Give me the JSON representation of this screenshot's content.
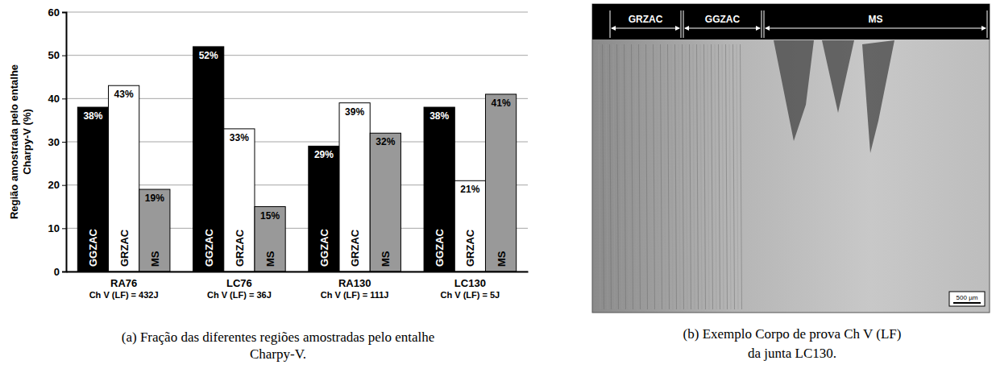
{
  "chart_data": {
    "type": "bar",
    "title": "(a) Fração das diferentes regiões amostradas pelo entalhe Charpy-V.",
    "y_label": "Região amostrada pelo entalhe Charpy-V (%)",
    "categories": [
      "RA76",
      "LC76",
      "RA130",
      "LC130"
    ],
    "category_notes": [
      "Ch V (LF) = 432J",
      "Ch V (LF) = 36J",
      "Ch V (LF) = 111J",
      "Ch V (LF) = 5J"
    ],
    "series": [
      {
        "name": "GGZAC",
        "color": "#000000",
        "values": [
          38,
          52,
          29,
          38
        ],
        "value_labels": [
          "38%",
          "52%",
          "29%",
          "38%"
        ]
      },
      {
        "name": "GRZAC",
        "color": "#ffffff",
        "values": [
          43,
          33,
          39,
          21
        ],
        "value_labels": [
          "43%",
          "33%",
          "39%",
          "21%"
        ]
      },
      {
        "name": "MS",
        "color": "#999999",
        "values": [
          19,
          15,
          32,
          41
        ],
        "value_labels": [
          "19%",
          "15%",
          "32%",
          "41%"
        ]
      }
    ],
    "ylim": [
      0,
      60
    ],
    "yticks": [
      0,
      10,
      20,
      30,
      40,
      50,
      60
    ],
    "grid": true,
    "data_labels": true
  },
  "panel_b": {
    "regions": [
      "GRZAC",
      "GGZAC",
      "MS"
    ],
    "scale_bar": "500 µm",
    "caption": [
      "(b) Exemplo Corpo de prova Ch V (LF)",
      "da junta LC130."
    ]
  }
}
